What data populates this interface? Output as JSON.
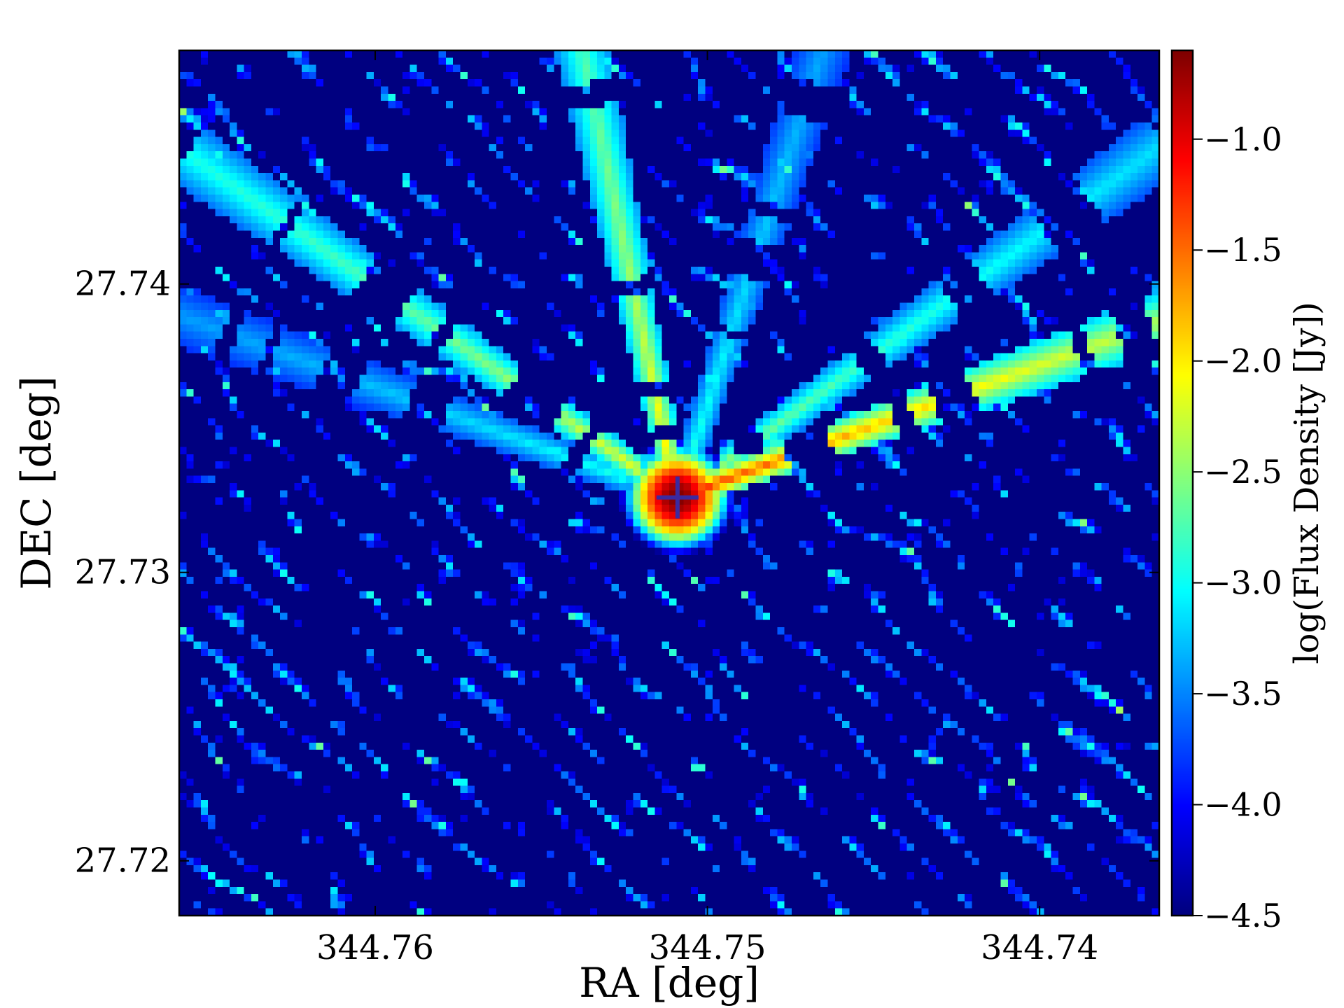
{
  "chart_data": {
    "type": "heatmap",
    "xlabel": "RA [deg]",
    "ylabel": "DEC [deg]",
    "colorbar_label": "log(Flux Density [Jy])",
    "colormap": "jet",
    "x_axis_inverted": true,
    "xlim": [
      344.7659,
      344.7364
    ],
    "ylim": [
      27.7181,
      27.7481
    ],
    "x_ticks": [
      {
        "value": 344.76,
        "label": "344.76"
      },
      {
        "value": 344.75,
        "label": "344.75"
      },
      {
        "value": 344.74,
        "label": "344.74"
      }
    ],
    "y_ticks": [
      {
        "value": 27.74,
        "label": "27.74"
      },
      {
        "value": 27.73,
        "label": "27.73"
      },
      {
        "value": 27.72,
        "label": "27.72"
      }
    ],
    "color_range": [
      -4.5,
      -0.6
    ],
    "colorbar_ticks": [
      {
        "value": -1.0,
        "label": "−1.0"
      },
      {
        "value": -1.5,
        "label": "−1.5"
      },
      {
        "value": -2.0,
        "label": "−2.0"
      },
      {
        "value": -2.5,
        "label": "−2.5"
      },
      {
        "value": -3.0,
        "label": "−3.0"
      },
      {
        "value": -3.5,
        "label": "−3.5"
      },
      {
        "value": -4.0,
        "label": "−4.0"
      },
      {
        "value": -4.5,
        "label": "−4.5"
      }
    ],
    "grid": false,
    "source": {
      "ra": 344.7509,
      "dec": 27.7326,
      "peak": -0.6,
      "marker": "plus"
    },
    "streaks": [
      {
        "angle_deg": 20,
        "strength": 1.3
      },
      {
        "angle_deg": 102,
        "strength": 1.0
      },
      {
        "angle_deg": 145,
        "strength": 0.95
      },
      {
        "angle_deg": 36,
        "strength": 0.8
      },
      {
        "angle_deg": 72,
        "strength": 0.6
      },
      {
        "angle_deg": 160,
        "strength": 0.6
      }
    ],
    "background_level": -4.5,
    "speckle_level": -3.3
  }
}
